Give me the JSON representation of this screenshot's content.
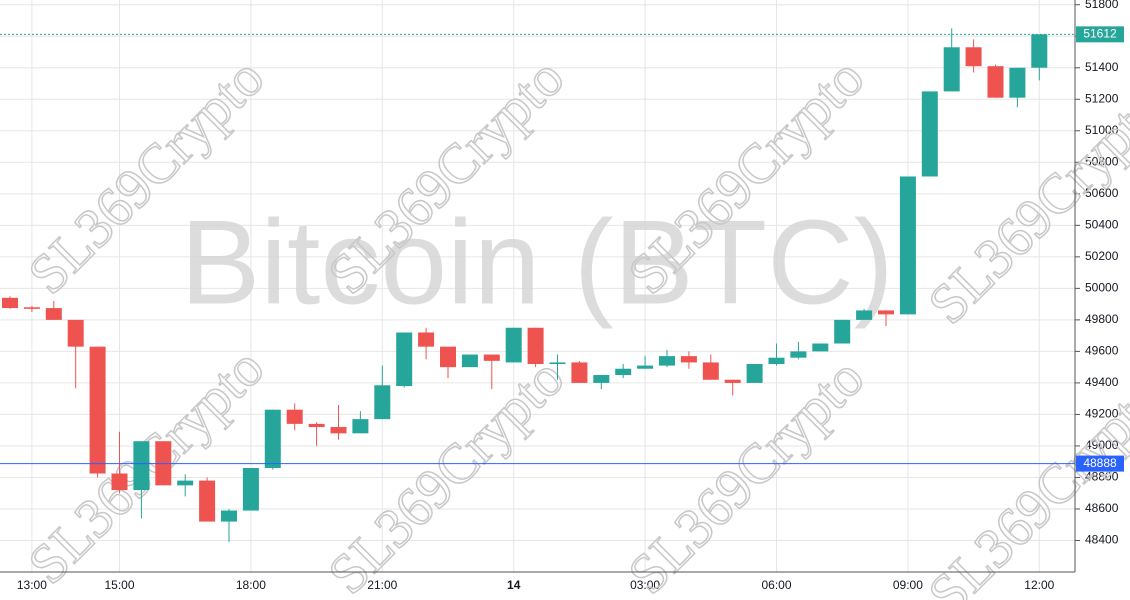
{
  "chart_data": {
    "type": "candlestick",
    "watermark": "Bitcoin (BTC)",
    "overlay_text": "SL369Crypto",
    "categories": [
      null,
      "13:00",
      null,
      null,
      null,
      "15:00",
      null,
      null,
      null,
      null,
      null,
      "18:00",
      null,
      null,
      null,
      null,
      null,
      "21:00",
      null,
      null,
      null,
      null,
      null,
      "14",
      null,
      null,
      null,
      null,
      null,
      "03:00",
      null,
      null,
      null,
      null,
      null,
      "06:00",
      null,
      null,
      null,
      null,
      null,
      "09:00",
      null,
      null,
      null,
      null,
      null,
      "12:00"
    ],
    "open": [
      49940,
      49880,
      49875,
      49800,
      49630,
      48825,
      48720,
      49030,
      48750,
      48780,
      48520,
      48590,
      48860,
      49230,
      49140,
      49120,
      49080,
      49170,
      49380,
      49720,
      49630,
      49500,
      49580,
      49530,
      49750,
      49520,
      49530,
      49400,
      49450,
      49490,
      49510,
      49570,
      49530,
      49420,
      49400,
      49520,
      49560,
      49600,
      49650,
      49800,
      49860,
      49835,
      50710,
      51250,
      51530,
      51410,
      51210,
      51400
    ],
    "high": [
      49950,
      49890,
      49920,
      49800,
      49630,
      49090,
      49030,
      49030,
      48820,
      48800,
      48600,
      48860,
      49230,
      49270,
      49150,
      49260,
      49220,
      49510,
      49720,
      49750,
      49630,
      49580,
      49580,
      49750,
      49750,
      49580,
      49540,
      49450,
      49520,
      49570,
      49610,
      49600,
      49580,
      49420,
      49520,
      49650,
      49660,
      49650,
      49800,
      49870,
      49860,
      50710,
      51250,
      51650,
      51580,
      51420,
      51400,
      51612
    ],
    "low": [
      49870,
      49850,
      49800,
      49366,
      48800,
      48700,
      48540,
      48750,
      48680,
      48520,
      48390,
      48590,
      48850,
      49100,
      49000,
      49040,
      49080,
      49170,
      49370,
      49550,
      49430,
      49500,
      49360,
      49530,
      49500,
      49420,
      49400,
      49360,
      49430,
      49490,
      49500,
      49490,
      49420,
      49320,
      49400,
      49510,
      49550,
      49600,
      49650,
      49800,
      49760,
      49835,
      50710,
      51250,
      51370,
      51210,
      51150,
      51320
    ],
    "close": [
      49875,
      49870,
      49800,
      49630,
      48825,
      48720,
      49030,
      48750,
      48780,
      48520,
      48590,
      48860,
      49230,
      49140,
      49120,
      49080,
      49170,
      49385,
      49720,
      49630,
      49500,
      49580,
      49540,
      49750,
      49520,
      49530,
      49400,
      49450,
      49490,
      49510,
      49570,
      49530,
      49420,
      49400,
      49520,
      49560,
      49600,
      49650,
      49800,
      49860,
      49835,
      50710,
      51250,
      51530,
      51410,
      51210,
      51400,
      51612
    ],
    "up_color": "#26a69a",
    "down_color": "#ef5350",
    "last_price": 51612,
    "last_price_color": "#26a69a",
    "marker_price": 48888,
    "marker_color": "#2962ff",
    "ylim": [
      48200,
      51830
    ],
    "yticks": [
      48400,
      48600,
      48800,
      49000,
      49200,
      49400,
      49600,
      49800,
      50000,
      50200,
      50400,
      50600,
      50800,
      51000,
      51200,
      51400,
      51600,
      51800
    ],
    "grid": true
  }
}
